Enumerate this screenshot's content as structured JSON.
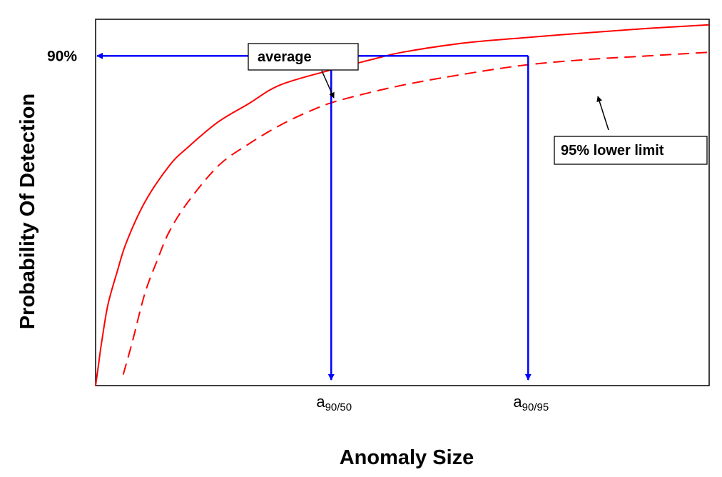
{
  "chart_data": {
    "type": "line",
    "xlabel": "Anomaly Size",
    "ylabel": "Probability Of Detection",
    "xlim": [
      0,
      1
    ],
    "ylim": [
      0,
      1
    ],
    "grid": false,
    "series": [
      {
        "name": "average",
        "style": "solid",
        "color": "#ff0000",
        "x": [
          0.0,
          0.005,
          0.01,
          0.02,
          0.035,
          0.05,
          0.08,
          0.12,
          0.15,
          0.2,
          0.25,
          0.3,
          0.38,
          0.45,
          0.5,
          0.6,
          0.7,
          0.8,
          0.9,
          1.0
        ],
        "y": [
          0.0,
          0.06,
          0.12,
          0.22,
          0.31,
          0.39,
          0.5,
          0.6,
          0.65,
          0.72,
          0.77,
          0.82,
          0.86,
          0.89,
          0.91,
          0.935,
          0.95,
          0.963,
          0.975,
          0.985
        ]
      },
      {
        "name": "95% lower limit",
        "style": "dashed",
        "color": "#ff0000",
        "x": [
          0.045,
          0.06,
          0.08,
          0.1,
          0.12,
          0.15,
          0.2,
          0.25,
          0.3,
          0.35,
          0.4,
          0.5,
          0.6,
          0.7,
          0.8,
          0.9,
          1.0
        ],
        "y": [
          0.03,
          0.12,
          0.25,
          0.34,
          0.42,
          0.5,
          0.6,
          0.66,
          0.71,
          0.75,
          0.78,
          0.82,
          0.85,
          0.875,
          0.89,
          0.9,
          0.91
        ]
      }
    ],
    "reference_lines": {
      "color": "#0000ff",
      "y_value": 0.9,
      "y_label": "90%",
      "marks": [
        {
          "x": 0.384,
          "label_main": "a",
          "label_sub": "90/50"
        },
        {
          "x": 0.705,
          "label_main": "a",
          "label_sub": "90/95"
        }
      ]
    },
    "annotations": [
      {
        "text": "average",
        "series": "average"
      },
      {
        "text": "95% lower limit",
        "series": "95% lower limit"
      }
    ]
  }
}
